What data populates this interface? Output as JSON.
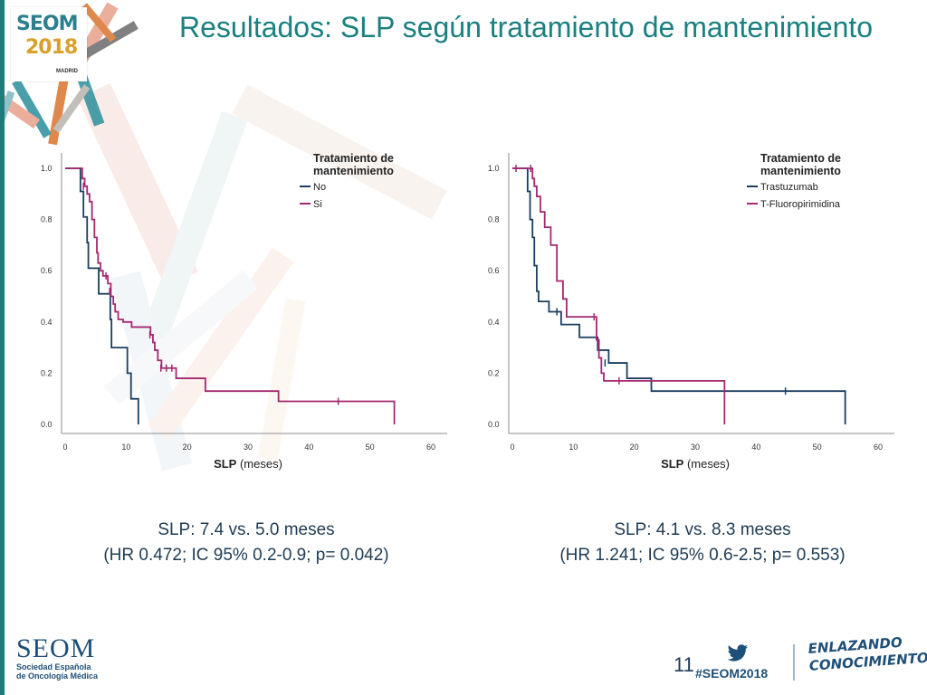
{
  "header": {
    "title": "Resultados: SLP según tratamiento de mantenimiento",
    "logo": {
      "brand": "SEOM",
      "year": "2018",
      "city": "MADRID"
    }
  },
  "chart_data": [
    {
      "type": "line",
      "title": "",
      "xlabel_bold": "SLP",
      "xlabel_rest": " (meses)",
      "ylabel": "",
      "xlim": [
        0,
        60
      ],
      "ylim": [
        0,
        1.0
      ],
      "xticks": [
        0,
        10,
        20,
        30,
        40,
        50,
        60
      ],
      "yticks": [
        0.0,
        0.2,
        0.4,
        0.6,
        0.8,
        1.0
      ],
      "ytick_labels": [
        "0.0",
        "0.2",
        "0.4",
        "0.6",
        "0.8",
        "1.0"
      ],
      "grid": false,
      "legend_title": "Tratamiento de mantenimiento",
      "legend_position": "top-right",
      "series": [
        {
          "name": "No",
          "color": "#1b3f5f",
          "steps": [
            [
              0,
              1.0
            ],
            [
              2,
              1.0
            ],
            [
              2.5,
              0.91
            ],
            [
              3,
              0.81
            ],
            [
              3.6,
              0.71
            ],
            [
              3.8,
              0.61
            ],
            [
              5,
              0.61
            ],
            [
              5.5,
              0.51
            ],
            [
              7.2,
              0.51
            ],
            [
              7.4,
              0.41
            ],
            [
              7.6,
              0.3
            ],
            [
              9,
              0.3
            ],
            [
              10.2,
              0.2
            ],
            [
              10.8,
              0.1
            ],
            [
              12,
              0.1
            ],
            [
              12,
              0.0
            ]
          ],
          "censored": []
        },
        {
          "name": "Si",
          "color": "#a3286f",
          "steps": [
            [
              0,
              1.0
            ],
            [
              2.5,
              1.0
            ],
            [
              2.8,
              0.96
            ],
            [
              3.2,
              0.93
            ],
            [
              3.6,
              0.9
            ],
            [
              4,
              0.87
            ],
            [
              4.4,
              0.8
            ],
            [
              4.8,
              0.73
            ],
            [
              5.2,
              0.67
            ],
            [
              5.4,
              0.63
            ],
            [
              5.8,
              0.6
            ],
            [
              6.2,
              0.58
            ],
            [
              7,
              0.55
            ],
            [
              7.5,
              0.5
            ],
            [
              7.9,
              0.47
            ],
            [
              8.2,
              0.44
            ],
            [
              8.7,
              0.41
            ],
            [
              9.5,
              0.4
            ],
            [
              10.9,
              0.38
            ],
            [
              13.8,
              0.38
            ],
            [
              14,
              0.35
            ],
            [
              14.4,
              0.32
            ],
            [
              14.7,
              0.29
            ],
            [
              15.2,
              0.25
            ],
            [
              15.8,
              0.22
            ],
            [
              18,
              0.22
            ],
            [
              18.2,
              0.18
            ],
            [
              22.8,
              0.18
            ],
            [
              23,
              0.13
            ],
            [
              34.8,
              0.13
            ],
            [
              35,
              0.09
            ],
            [
              54,
              0.09
            ],
            [
              54,
              0.0
            ]
          ],
          "censored": [
            [
              3,
              0.93
            ],
            [
              6.7,
              0.58
            ],
            [
              7.3,
              0.52
            ],
            [
              13.9,
              0.35
            ],
            [
              15.7,
              0.22
            ],
            [
              16.6,
              0.22
            ],
            [
              17.5,
              0.22
            ],
            [
              44.8,
              0.09
            ]
          ]
        }
      ]
    },
    {
      "type": "line",
      "title": "",
      "xlabel_bold": "SLP",
      "xlabel_rest": " (meses)",
      "ylabel": "",
      "xlim": [
        0,
        60
      ],
      "ylim": [
        0,
        1.0
      ],
      "xticks": [
        0,
        10,
        20,
        30,
        40,
        50,
        60
      ],
      "yticks": [
        0.0,
        0.2,
        0.4,
        0.6,
        0.8,
        1.0
      ],
      "ytick_labels": [
        "0.0",
        "0.2",
        "0.4",
        "0.6",
        "0.8",
        "1.0"
      ],
      "grid": false,
      "legend_title": "Tratamiento de mantenimiento",
      "legend_position": "top-right",
      "series": [
        {
          "name": "Trastuzumab",
          "color": "#1b3f5f",
          "steps": [
            [
              0,
              1.0
            ],
            [
              2.2,
              1.0
            ],
            [
              2.5,
              0.91
            ],
            [
              2.9,
              0.8
            ],
            [
              3.3,
              0.73
            ],
            [
              3.6,
              0.62
            ],
            [
              4,
              0.52
            ],
            [
              4.3,
              0.48
            ],
            [
              5.8,
              0.48
            ],
            [
              6,
              0.44
            ],
            [
              7.8,
              0.44
            ],
            [
              8,
              0.39
            ],
            [
              10.8,
              0.39
            ],
            [
              11,
              0.34
            ],
            [
              13.8,
              0.34
            ],
            [
              14,
              0.29
            ],
            [
              15.6,
              0.29
            ],
            [
              15.8,
              0.24
            ],
            [
              18.6,
              0.24
            ],
            [
              18.8,
              0.18
            ],
            [
              22.6,
              0.18
            ],
            [
              22.8,
              0.13
            ],
            [
              54.6,
              0.13
            ],
            [
              54.6,
              0.0
            ]
          ],
          "censored": [
            [
              7.3,
              0.44
            ],
            [
              15.2,
              0.24
            ],
            [
              44.8,
              0.13
            ]
          ]
        },
        {
          "name": "T-Fluoropirimidina",
          "color": "#a3286f",
          "steps": [
            [
              0,
              1.0
            ],
            [
              3,
              1.0
            ],
            [
              3.3,
              0.96
            ],
            [
              3.6,
              0.93
            ],
            [
              4,
              0.89
            ],
            [
              4.6,
              0.83
            ],
            [
              5.3,
              0.77
            ],
            [
              6.3,
              0.7
            ],
            [
              7.3,
              0.56
            ],
            [
              8.3,
              0.49
            ],
            [
              8.9,
              0.42
            ],
            [
              13.6,
              0.42
            ],
            [
              13.8,
              0.33
            ],
            [
              14.2,
              0.26
            ],
            [
              14.6,
              0.2
            ],
            [
              15,
              0.17
            ],
            [
              34.8,
              0.17
            ],
            [
              34.8,
              0.0
            ]
          ],
          "censored": [
            [
              0.6,
              1.0
            ],
            [
              3,
              1.0
            ],
            [
              13.4,
              0.42
            ],
            [
              17.5,
              0.17
            ]
          ]
        }
      ]
    }
  ],
  "summaries": [
    {
      "line1": "SLP: 7.4 vs. 5.0 meses",
      "line2": "(HR 0.472; IC 95% 0.2-0.9; p= 0.042)"
    },
    {
      "line1": "SLP: 4.1 vs. 8.3 meses",
      "line2": "(HR 1.241; IC 95% 0.6-2.5; p= 0.553)"
    }
  ],
  "footer": {
    "org_name": "SEOM",
    "org_line1": "Sociedad Española",
    "org_line2": "de Oncología Médica",
    "page_number": "11",
    "hashtag": "#SEOM2018",
    "slogan_line1": "ENLAZANDO",
    "slogan_line2": "CONOCIMIENTO"
  },
  "colors": {
    "title": "#1a8080",
    "navy": "#1b3f5f",
    "magenta": "#a3286f"
  }
}
